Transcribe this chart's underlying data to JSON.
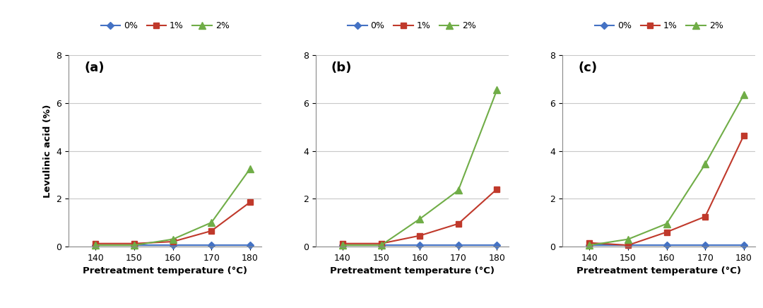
{
  "x": [
    140,
    150,
    160,
    170,
    180
  ],
  "subplots": [
    {
      "label": "(a)",
      "series": {
        "0%": [
          0.05,
          0.05,
          0.05,
          0.05,
          0.05
        ],
        "1%": [
          0.12,
          0.12,
          0.2,
          0.65,
          1.85
        ],
        "2%": [
          0.05,
          0.05,
          0.3,
          1.0,
          3.25
        ]
      }
    },
    {
      "label": "(b)",
      "series": {
        "0%": [
          0.05,
          0.05,
          0.05,
          0.05,
          0.05
        ],
        "1%": [
          0.12,
          0.12,
          0.45,
          0.95,
          2.4
        ],
        "2%": [
          0.05,
          0.05,
          1.15,
          2.35,
          6.55
        ]
      }
    },
    {
      "label": "(c)",
      "series": {
        "0%": [
          0.05,
          0.05,
          0.05,
          0.05,
          0.05
        ],
        "1%": [
          0.15,
          0.05,
          0.6,
          1.25,
          4.65
        ],
        "2%": [
          0.05,
          0.3,
          0.95,
          3.45,
          6.35
        ]
      }
    }
  ],
  "colors": {
    "0%": "#4472C4",
    "1%": "#C0392B",
    "2%": "#70AD47"
  },
  "markers": {
    "0%": "D",
    "1%": "s",
    "2%": "^"
  },
  "marker_sizes": {
    "0%": 5,
    "1%": 6,
    "2%": 7
  },
  "ylim": [
    0,
    8
  ],
  "yticks": [
    0,
    2,
    4,
    6,
    8
  ],
  "xlabel": "Pretreatment temperature (°C)",
  "ylabel": "Levulinic acid (%)",
  "legend_labels": [
    "0%",
    "1%",
    "2%"
  ],
  "bg_color": "#ffffff",
  "grid_color": "#c8c8c8"
}
